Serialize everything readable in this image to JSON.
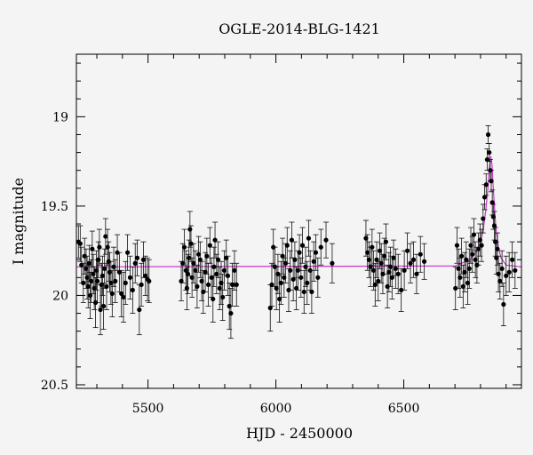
{
  "chart_data": {
    "type": "scatter",
    "title": "OGLE-2014-BLG-1421",
    "xlabel": "HJD - 2450000",
    "ylabel": "I magnitude",
    "xlim": [
      5220,
      6960
    ],
    "ylim": [
      20.52,
      18.65
    ],
    "y_inverted": true,
    "x_ticks": [
      5500,
      6000,
      6500
    ],
    "x_tick_labels": [
      "5500",
      "6000",
      "6500"
    ],
    "y_ticks": [
      19,
      19.5,
      20,
      20.5
    ],
    "y_tick_labels": [
      "19",
      "19.5",
      "20",
      "20.5"
    ],
    "x_minor_step": 100,
    "y_minor_step": 0.1,
    "grid": false,
    "legend": "none",
    "colors": {
      "points": "#000000",
      "model": "#cc33cc",
      "background": "#f4f4f4"
    },
    "model_curve": {
      "baseline": 19.84,
      "x": [
        5220,
        6700,
        6760,
        6790,
        6810,
        6820,
        6830,
        6835,
        6840,
        6845,
        6850,
        6855,
        6860,
        6870,
        6880,
        6900,
        6960
      ],
      "mag": [
        19.84,
        19.835,
        19.8,
        19.74,
        19.64,
        19.53,
        19.38,
        19.28,
        19.22,
        19.27,
        19.4,
        19.52,
        19.62,
        19.73,
        19.79,
        19.83,
        19.84
      ]
    },
    "series": [
      {
        "x": [
          5228,
          5235,
          5240,
          5247,
          5252,
          5258,
          5262,
          5266,
          5270,
          5274,
          5278,
          5282,
          5286,
          5290,
          5295,
          5298,
          5302,
          5306,
          5310,
          5314,
          5318,
          5322,
          5326,
          5330,
          5334,
          5338,
          5342,
          5346,
          5350,
          5355,
          5360,
          5366,
          5372,
          5380,
          5388,
          5396,
          5404,
          5412,
          5420,
          5430,
          5440,
          5450,
          5458,
          5466,
          5474,
          5482,
          5490,
          5498,
          5504
        ],
        "mag": [
          19.7,
          19.71,
          19.83,
          19.93,
          19.78,
          19.85,
          19.9,
          19.95,
          19.82,
          20.0,
          19.92,
          19.74,
          19.88,
          19.96,
          20.04,
          19.86,
          19.92,
          19.8,
          19.73,
          20.08,
          19.94,
          19.89,
          20.06,
          19.85,
          19.67,
          19.95,
          19.73,
          19.81,
          19.87,
          19.93,
          19.99,
          19.84,
          19.92,
          19.76,
          19.87,
          19.99,
          20.01,
          19.93,
          19.76,
          19.9,
          19.97,
          19.82,
          19.79,
          20.08,
          19.94,
          19.8,
          19.89,
          19.91,
          19.92
        ],
        "err": [
          0.09,
          0.1,
          0.1,
          0.11,
          0.1,
          0.11,
          0.12,
          0.12,
          0.1,
          0.13,
          0.12,
          0.1,
          0.11,
          0.12,
          0.14,
          0.11,
          0.12,
          0.1,
          0.1,
          0.14,
          0.12,
          0.11,
          0.13,
          0.11,
          0.1,
          0.13,
          0.1,
          0.11,
          0.11,
          0.12,
          0.13,
          0.11,
          0.12,
          0.1,
          0.11,
          0.13,
          0.14,
          0.12,
          0.1,
          0.12,
          0.13,
          0.11,
          0.1,
          0.14,
          0.12,
          0.1,
          0.11,
          0.12,
          0.12
        ]
      },
      {
        "x": [
          5630,
          5636,
          5642,
          5648,
          5652,
          5656,
          5660,
          5664,
          5668,
          5672,
          5678,
          5685,
          5692,
          5698,
          5704,
          5710,
          5716,
          5724,
          5730,
          5736,
          5742,
          5748,
          5754,
          5758,
          5762,
          5768,
          5774,
          5780,
          5786,
          5792,
          5798,
          5806,
          5812,
          5818,
          5824,
          5830,
          5838,
          5846
        ],
        "mag": [
          19.92,
          19.82,
          19.73,
          19.86,
          19.96,
          19.88,
          19.79,
          19.63,
          19.71,
          19.9,
          19.82,
          19.86,
          19.95,
          19.77,
          19.8,
          19.92,
          19.98,
          19.87,
          19.78,
          19.94,
          19.72,
          19.9,
          20.02,
          19.84,
          19.69,
          19.88,
          19.8,
          19.96,
          19.93,
          20.01,
          19.86,
          19.79,
          19.89,
          20.06,
          20.1,
          19.94,
          19.86,
          19.94
        ],
        "err": [
          0.11,
          0.11,
          0.1,
          0.11,
          0.12,
          0.11,
          0.1,
          0.1,
          0.1,
          0.11,
          0.11,
          0.11,
          0.12,
          0.1,
          0.1,
          0.11,
          0.12,
          0.11,
          0.1,
          0.12,
          0.1,
          0.11,
          0.13,
          0.11,
          0.1,
          0.11,
          0.1,
          0.12,
          0.12,
          0.13,
          0.11,
          0.1,
          0.11,
          0.13,
          0.14,
          0.12,
          0.11,
          0.12
        ]
      },
      {
        "x": [
          5978,
          5984,
          5990,
          5996,
          6002,
          6008,
          6014,
          6020,
          6026,
          6032,
          6038,
          6044,
          6050,
          6056,
          6062,
          6068,
          6074,
          6080,
          6086,
          6092,
          6098,
          6104,
          6110,
          6116,
          6122,
          6128,
          6134,
          6140,
          6148,
          6156,
          6164,
          6176,
          6196,
          6220
        ],
        "mag": [
          20.07,
          19.94,
          19.73,
          19.84,
          19.96,
          19.88,
          20.02,
          19.93,
          19.78,
          19.9,
          19.82,
          19.72,
          19.97,
          19.86,
          19.69,
          19.91,
          19.8,
          19.96,
          19.86,
          19.76,
          19.9,
          19.72,
          19.98,
          19.84,
          19.93,
          19.68,
          19.86,
          19.98,
          19.81,
          19.76,
          19.9,
          19.73,
          19.69,
          19.82
        ],
        "err": [
          0.13,
          0.12,
          0.1,
          0.11,
          0.12,
          0.11,
          0.13,
          0.12,
          0.1,
          0.11,
          0.11,
          0.1,
          0.12,
          0.11,
          0.1,
          0.12,
          0.1,
          0.12,
          0.11,
          0.1,
          0.11,
          0.1,
          0.12,
          0.11,
          0.12,
          0.1,
          0.11,
          0.12,
          0.11,
          0.1,
          0.11,
          0.1,
          0.1,
          0.11
        ]
      },
      {
        "x": [
          6352,
          6358,
          6364,
          6370,
          6376,
          6382,
          6388,
          6394,
          6400,
          6406,
          6412,
          6418,
          6424,
          6430,
          6436,
          6442,
          6448,
          6454,
          6460,
          6468,
          6478,
          6490,
          6502,
          6514,
          6526,
          6538,
          6550,
          6565,
          6580
        ],
        "mag": [
          19.68,
          19.76,
          19.8,
          19.84,
          19.73,
          19.86,
          19.94,
          19.8,
          19.92,
          19.75,
          19.82,
          19.88,
          19.78,
          19.7,
          19.95,
          19.87,
          19.84,
          19.9,
          19.79,
          19.85,
          19.88,
          19.97,
          19.86,
          19.75,
          19.82,
          19.8,
          19.88,
          19.77,
          19.81
        ],
        "err": [
          0.1,
          0.1,
          0.1,
          0.11,
          0.1,
          0.11,
          0.12,
          0.1,
          0.11,
          0.1,
          0.11,
          0.11,
          0.1,
          0.1,
          0.12,
          0.11,
          0.11,
          0.12,
          0.1,
          0.11,
          0.11,
          0.12,
          0.11,
          0.1,
          0.11,
          0.1,
          0.11,
          0.1,
          0.1
        ]
      },
      {
        "x": [
          6702,
          6708,
          6714,
          6720,
          6726,
          6732,
          6738,
          6744,
          6750,
          6756,
          6762,
          6768,
          6774,
          6780,
          6786,
          6792,
          6798,
          6804,
          6810,
          6816,
          6822,
          6826,
          6830,
          6834,
          6838,
          6842,
          6846,
          6850,
          6854,
          6858,
          6862,
          6866,
          6870,
          6876,
          6884,
          6890,
          6900,
          6912,
          6924,
          6935
        ],
        "mag": [
          19.96,
          19.72,
          19.85,
          19.9,
          19.78,
          19.95,
          19.87,
          19.8,
          19.93,
          19.85,
          19.72,
          19.77,
          19.66,
          19.8,
          19.83,
          19.74,
          19.69,
          19.72,
          19.57,
          19.45,
          19.38,
          19.24,
          19.1,
          19.2,
          19.3,
          19.36,
          19.48,
          19.56,
          19.61,
          19.7,
          19.79,
          19.74,
          19.88,
          19.92,
          19.85,
          20.05,
          19.89,
          19.87,
          19.8,
          19.86
        ],
        "err": [
          0.12,
          0.1,
          0.11,
          0.11,
          0.1,
          0.12,
          0.11,
          0.1,
          0.12,
          0.11,
          0.1,
          0.1,
          0.09,
          0.1,
          0.1,
          0.09,
          0.09,
          0.09,
          0.08,
          0.07,
          0.06,
          0.06,
          0.05,
          0.05,
          0.06,
          0.06,
          0.07,
          0.07,
          0.08,
          0.08,
          0.09,
          0.09,
          0.1,
          0.1,
          0.1,
          0.12,
          0.11,
          0.11,
          0.1,
          0.1
        ]
      }
    ]
  }
}
